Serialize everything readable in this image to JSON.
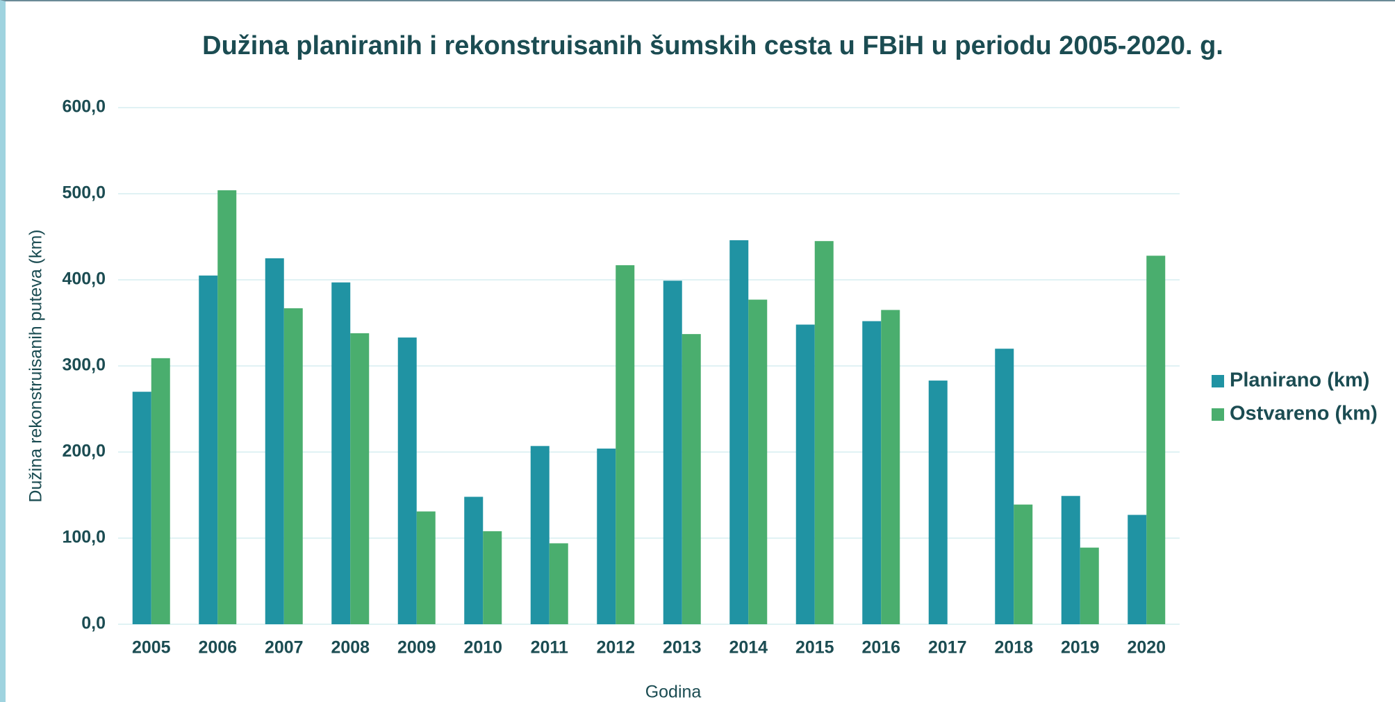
{
  "chart_data": {
    "type": "bar",
    "title": "Dužina planiranih i rekonstruisanih šumskih cesta u FBiH u periodu 2005-2020. g.",
    "x_label": "Godina",
    "y_label": "Dužina rekonstruisanih puteva (km)",
    "categories": [
      "2005",
      "2006",
      "2007",
      "2008",
      "2009",
      "2010",
      "2011",
      "2012",
      "2013",
      "2014",
      "2015",
      "2016",
      "2017",
      "2018",
      "2019",
      "2020"
    ],
    "series": [
      {
        "name": "Planirano (km)",
        "color": "#2093a3",
        "values": [
          270,
          405,
          425,
          397,
          333,
          148,
          207,
          204,
          399,
          446,
          348,
          352,
          283,
          320,
          149,
          127
        ]
      },
      {
        "name": "Ostvareno (km)",
        "color": "#4aae6e",
        "values": [
          309,
          504,
          367,
          338,
          131,
          108,
          94,
          417,
          337,
          377,
          445,
          365,
          null,
          139,
          89,
          428
        ]
      }
    ],
    "ylim": [
      0,
      600
    ],
    "yticks": [
      {
        "value": 0,
        "label": "0,0"
      },
      {
        "value": 100,
        "label": "100,0"
      },
      {
        "value": 200,
        "label": "200,0"
      },
      {
        "value": 300,
        "label": "300,0"
      },
      {
        "value": 400,
        "label": "400,0"
      },
      {
        "value": 500,
        "label": "500,0"
      },
      {
        "value": 600,
        "label": "600,0"
      }
    ],
    "grid": true,
    "legend": "right"
  }
}
